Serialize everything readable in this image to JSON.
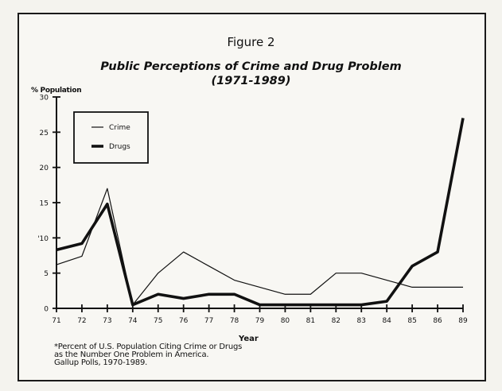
{
  "figure_label": "Figure 2",
  "chart_data": {
    "type": "line",
    "title": "Public Perceptions of Crime and Drug Problem",
    "subtitle": "(1971-1989)",
    "xlabel": "Year",
    "ylabel": "% Population",
    "categories": [
      "71",
      "72",
      "73",
      "74",
      "75",
      "76",
      "77",
      "78",
      "79",
      "80",
      "81",
      "82",
      "83",
      "84",
      "85",
      "86",
      "89"
    ],
    "yticks": [
      "0",
      "5",
      "'10",
      "15",
      "20",
      "25",
      "30"
    ],
    "ylim": [
      0,
      30
    ],
    "grid": false,
    "legend_placement": "top-left",
    "series": [
      {
        "name": "Crime",
        "values": [
          6.2,
          7.4,
          17,
          0.5,
          5,
          8,
          6,
          4,
          3,
          2,
          2,
          5,
          5,
          4,
          3,
          3,
          3
        ]
      },
      {
        "name": "Drugs",
        "values": [
          8.3,
          9.2,
          14.8,
          0.5,
          2,
          1.4,
          2,
          2,
          0.5,
          0.5,
          0.5,
          0.5,
          0.5,
          1,
          6,
          8,
          27
        ]
      }
    ]
  },
  "footnote": [
    "*Percent of U.S. Population Citing Crime or Drugs",
    "as the Number One Problem in America.",
    "Gallup Polls, 1970-1989."
  ]
}
